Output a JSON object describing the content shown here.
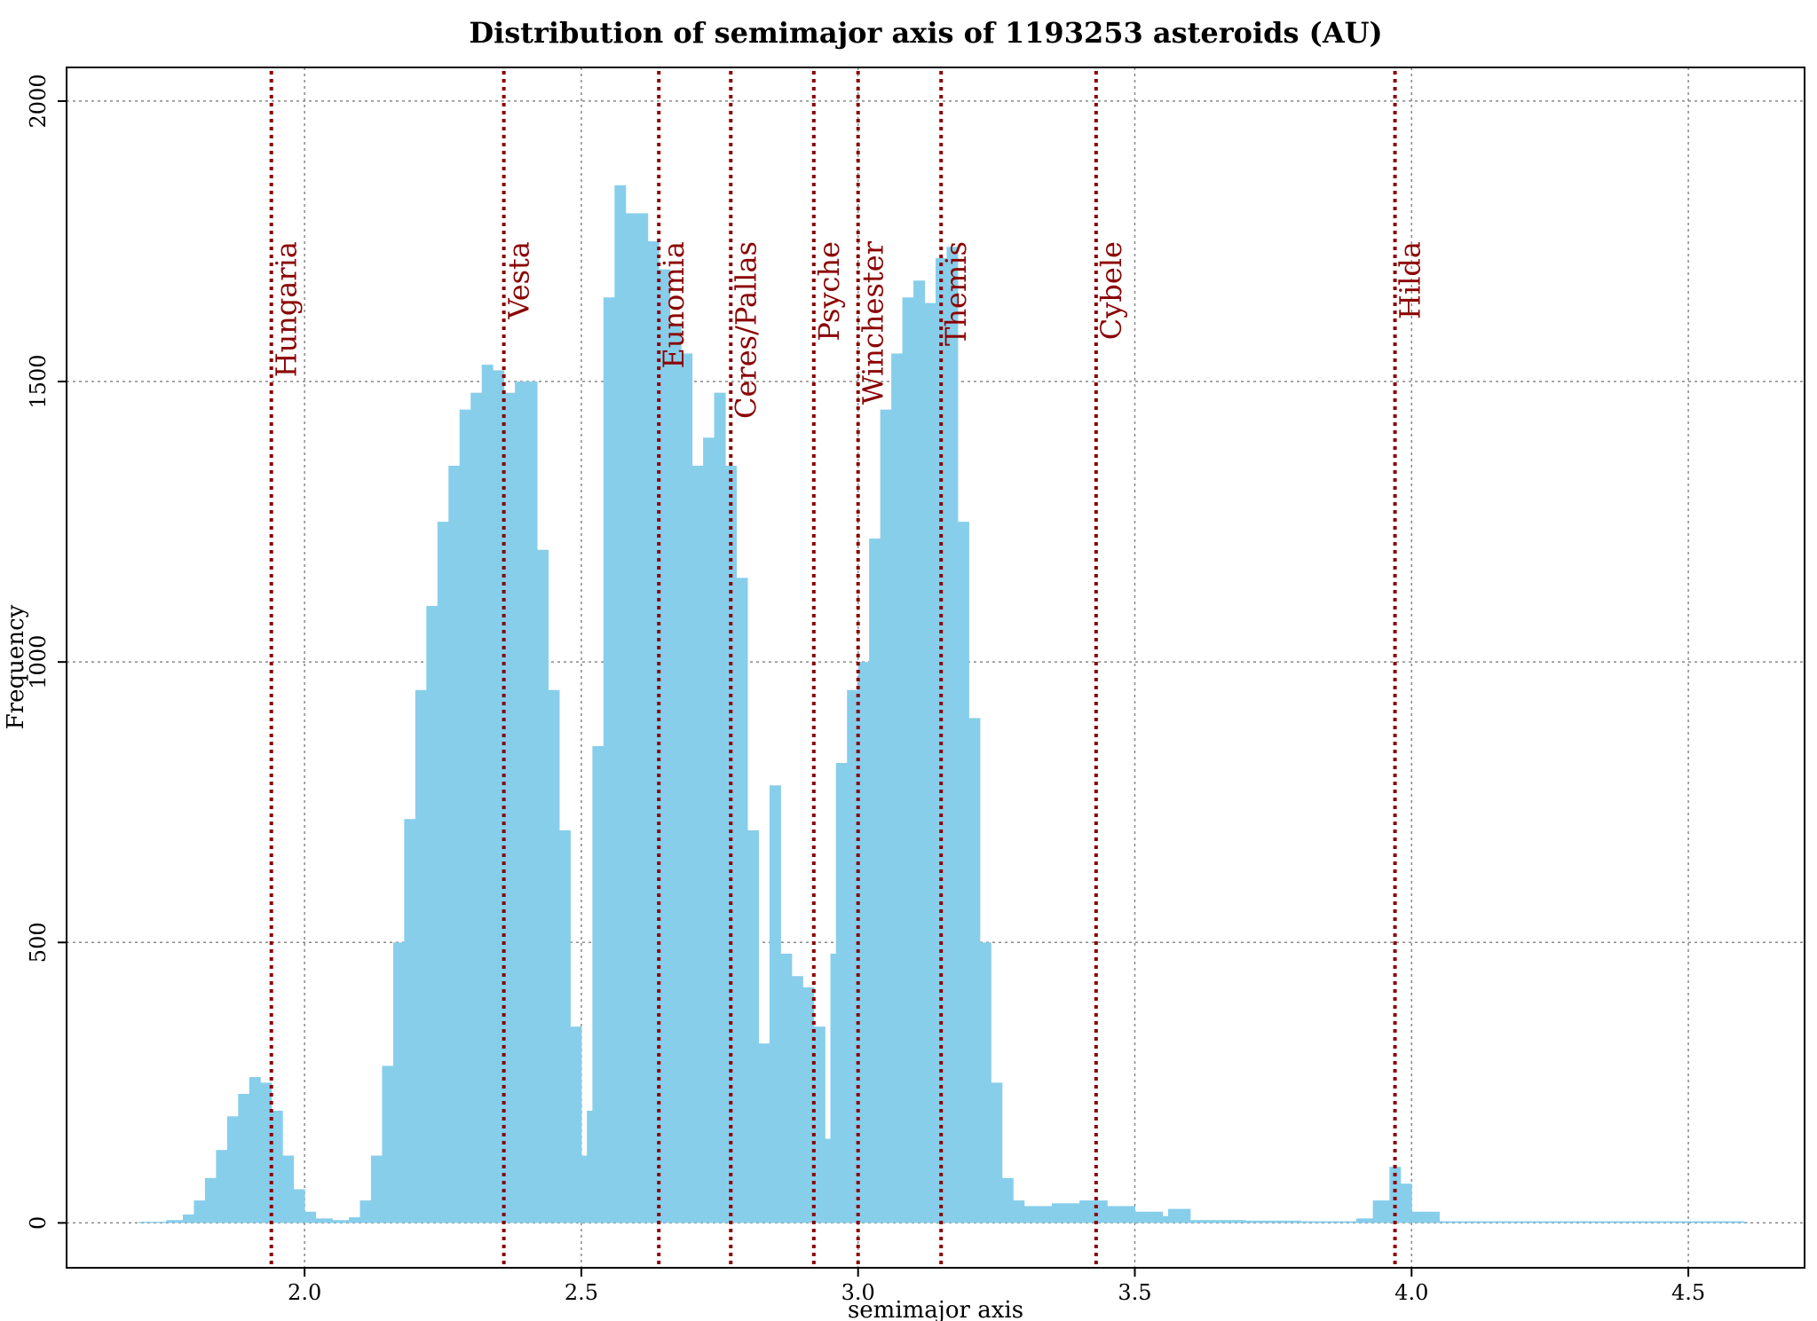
{
  "chart_data": {
    "type": "bar",
    "title": "Distribution of semimajor axis of 1193253 asteroids (AU)",
    "xlabel": "semimajor axis",
    "ylabel": "Frequency",
    "xlim": [
      1.57,
      4.71
    ],
    "ylim": [
      -80,
      2060
    ],
    "x_ticks": [
      "2.0",
      "2.5",
      "3.0",
      "3.5",
      "4.0",
      "4.5"
    ],
    "y_ticks": [
      "0",
      "500",
      "1000",
      "1500",
      "2000"
    ],
    "grid": true,
    "bar_color": "#87ceeb",
    "family_line_color": "#8b0000",
    "x": [
      1.7,
      1.75,
      1.78,
      1.8,
      1.82,
      1.84,
      1.86,
      1.88,
      1.9,
      1.92,
      1.94,
      1.96,
      1.98,
      2.0,
      2.02,
      2.05,
      2.08,
      2.1,
      2.12,
      2.14,
      2.16,
      2.18,
      2.2,
      2.22,
      2.24,
      2.26,
      2.28,
      2.3,
      2.32,
      2.34,
      2.36,
      2.38,
      2.4,
      2.42,
      2.44,
      2.46,
      2.48,
      2.5,
      2.51,
      2.52,
      2.54,
      2.56,
      2.58,
      2.6,
      2.62,
      2.64,
      2.66,
      2.68,
      2.7,
      2.72,
      2.74,
      2.76,
      2.78,
      2.8,
      2.82,
      2.84,
      2.86,
      2.88,
      2.9,
      2.92,
      2.94,
      2.95,
      2.96,
      2.98,
      3.0,
      3.02,
      3.04,
      3.06,
      3.08,
      3.1,
      3.12,
      3.14,
      3.16,
      3.18,
      3.2,
      3.22,
      3.24,
      3.26,
      3.28,
      3.3,
      3.35,
      3.4,
      3.45,
      3.5,
      3.55,
      3.56,
      3.6,
      3.7,
      3.8,
      3.9,
      3.93,
      3.96,
      3.98,
      4.0,
      4.05,
      4.2,
      4.4,
      4.6
    ],
    "values": [
      2,
      5,
      15,
      40,
      80,
      130,
      190,
      230,
      260,
      250,
      200,
      120,
      60,
      20,
      8,
      5,
      10,
      40,
      120,
      280,
      500,
      720,
      950,
      1100,
      1250,
      1350,
      1450,
      1480,
      1530,
      1520,
      1480,
      1500,
      1500,
      1200,
      950,
      700,
      350,
      120,
      200,
      850,
      1650,
      1850,
      1800,
      1800,
      1750,
      1700,
      1600,
      1550,
      1350,
      1400,
      1480,
      1350,
      1150,
      700,
      320,
      780,
      480,
      440,
      420,
      350,
      150,
      480,
      820,
      950,
      1000,
      1220,
      1450,
      1550,
      1650,
      1680,
      1640,
      1720,
      1740,
      1250,
      900,
      500,
      250,
      80,
      40,
      30,
      35,
      40,
      30,
      20,
      12,
      25,
      5,
      4,
      3,
      8,
      40,
      100,
      70,
      20,
      3,
      3,
      3,
      2
    ],
    "families": [
      {
        "name": "Hungaria",
        "x": 1.94
      },
      {
        "name": "Vesta",
        "x": 2.36
      },
      {
        "name": "Eunomia",
        "x": 2.64
      },
      {
        "name": "Ceres/Pallas",
        "x": 2.77
      },
      {
        "name": "Psyche",
        "x": 2.92
      },
      {
        "name": "Winchester",
        "x": 3.0
      },
      {
        "name": "Themis",
        "x": 3.15
      },
      {
        "name": "Cybele",
        "x": 3.43
      },
      {
        "name": "Hilda",
        "x": 3.97
      }
    ]
  }
}
